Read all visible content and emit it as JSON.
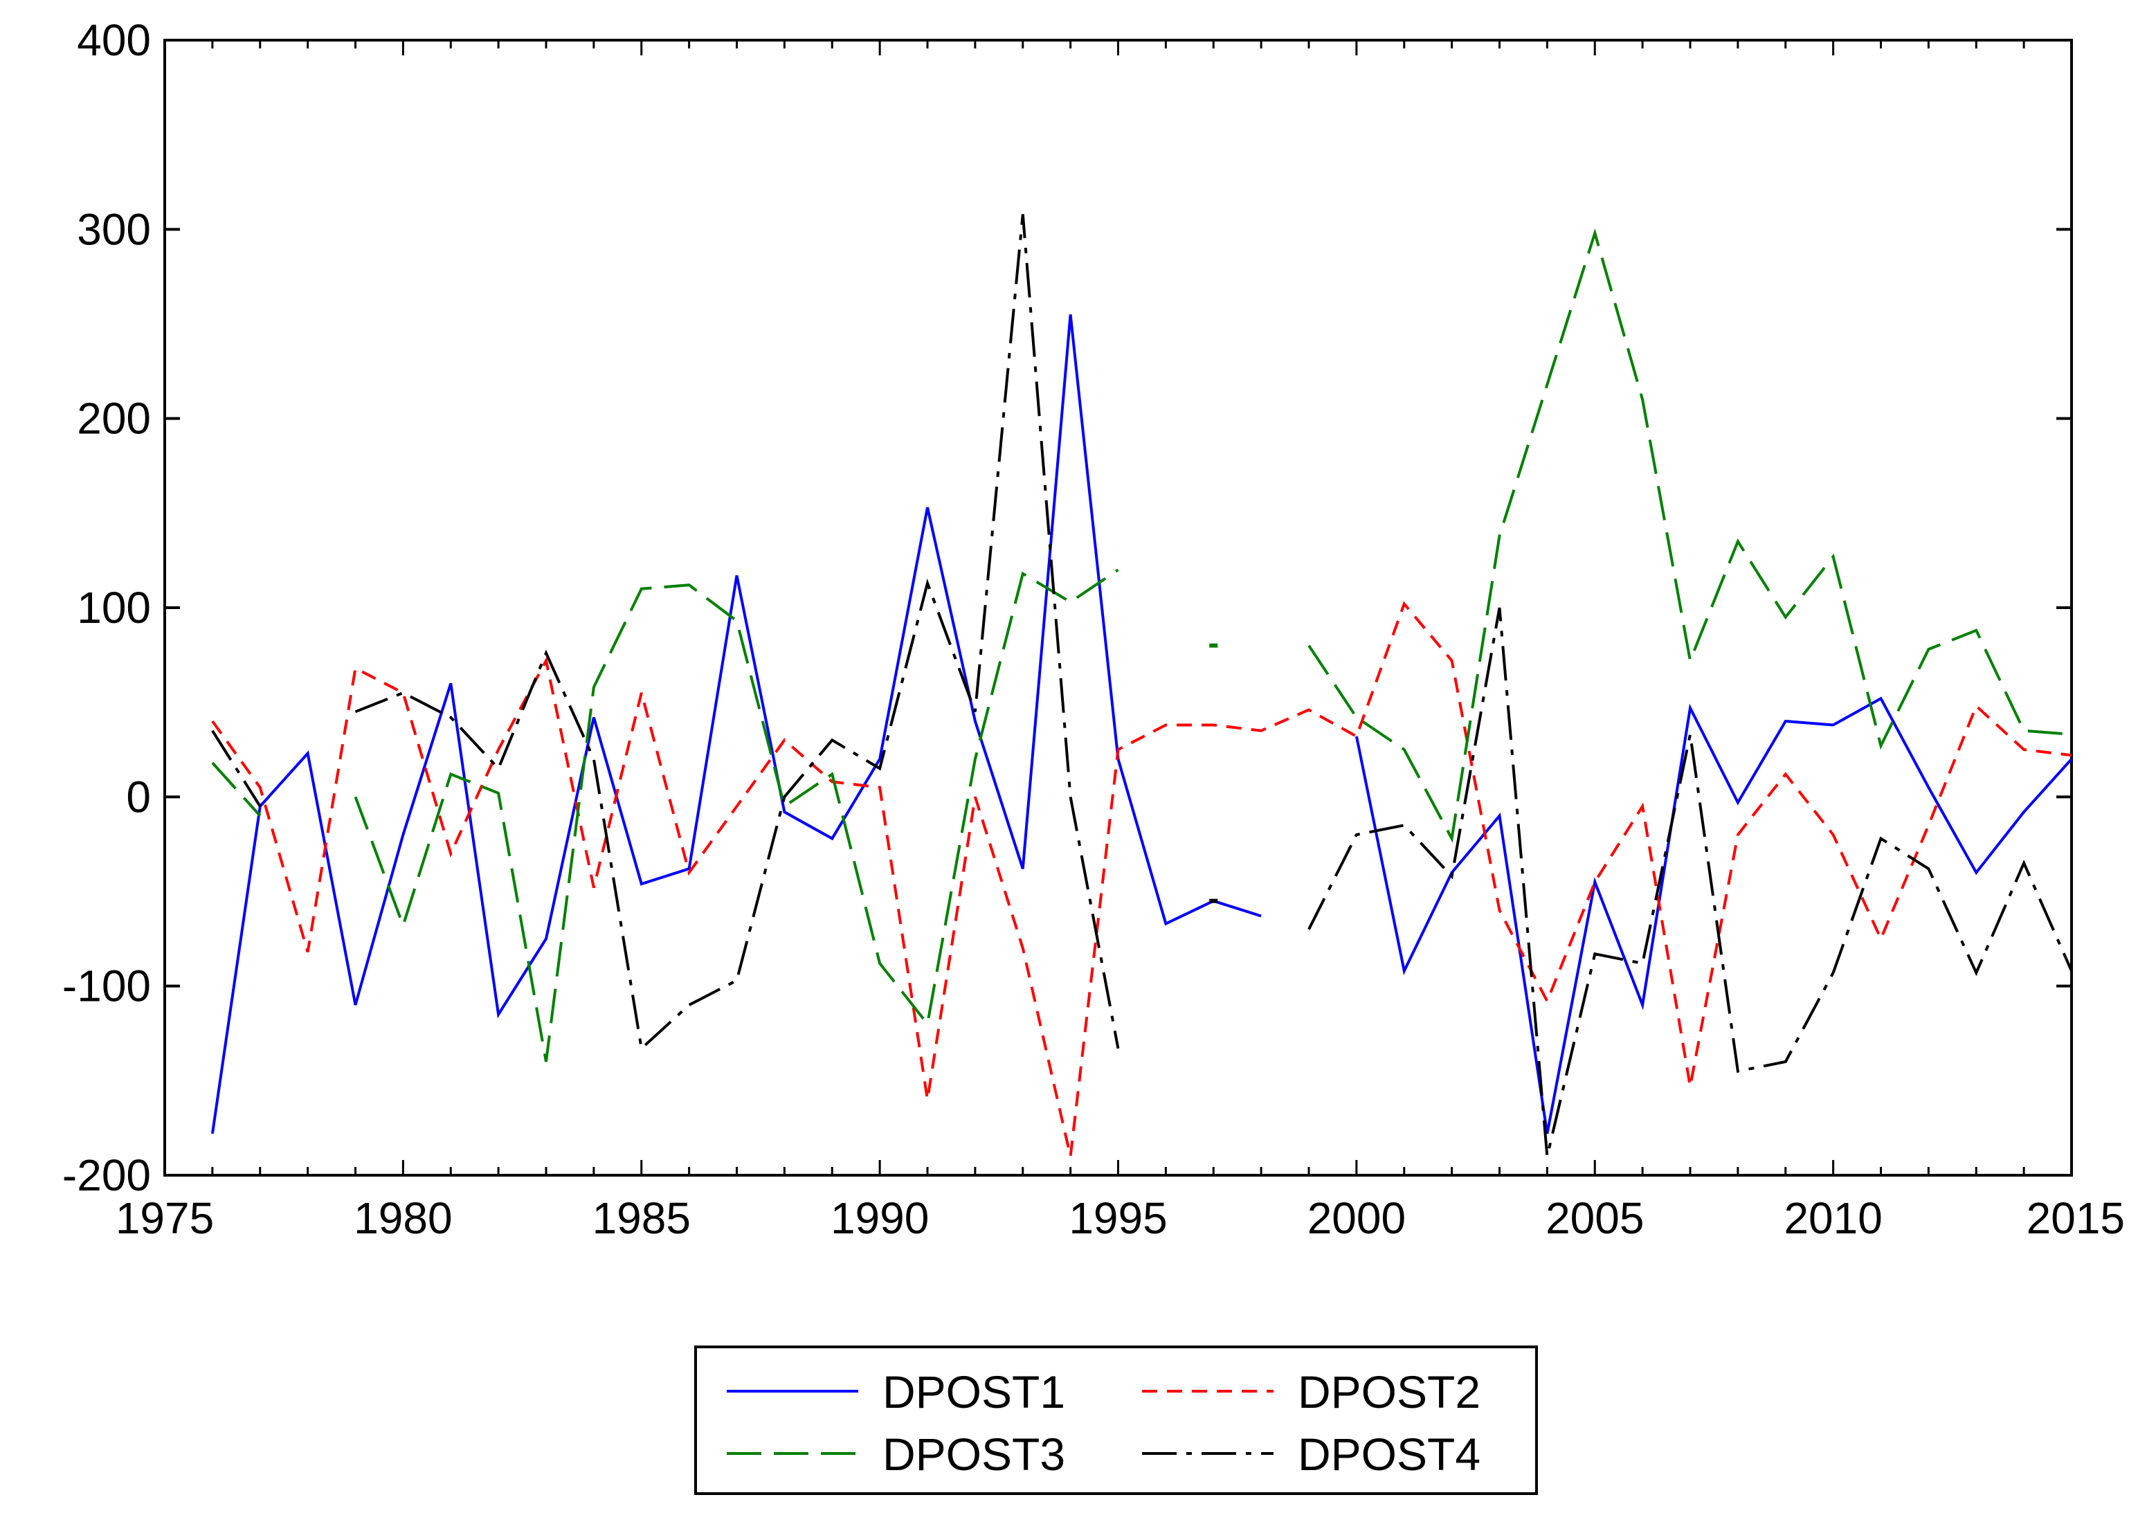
{
  "chart_data": {
    "type": "line",
    "title": "",
    "xlabel": "",
    "ylabel": "",
    "xlim": [
      1975,
      2015
    ],
    "ylim": [
      -200,
      400
    ],
    "x_ticks": [
      1975,
      1980,
      1985,
      1990,
      1995,
      2000,
      2005,
      2010,
      2015
    ],
    "x_tick_labels": [
      "1975",
      "1980",
      "1985",
      "1990",
      "1995",
      "2000",
      "2005",
      "2010",
      "2015"
    ],
    "y_ticks": [
      -200,
      -100,
      0,
      100,
      200,
      300,
      400
    ],
    "y_tick_labels": [
      "-200",
      "-100",
      "0",
      "100",
      "200",
      "300",
      "400"
    ],
    "grid": false,
    "legend_position": "bottom",
    "x": [
      1976,
      1977,
      1978,
      1979,
      1980,
      1981,
      1982,
      1983,
      1984,
      1985,
      1986,
      1987,
      1988,
      1989,
      1990,
      1991,
      1992,
      1993,
      1994,
      1995,
      1996,
      1997,
      1998,
      1999,
      2000,
      2001,
      2002,
      2003,
      2004,
      2005,
      2006,
      2007,
      2008,
      2009,
      2010,
      2011,
      2012,
      2013,
      2014,
      2015
    ],
    "series": [
      {
        "name": "DPOST1",
        "color": "#0000ff",
        "dash": "solid",
        "values": [
          -178,
          -5,
          23,
          -110,
          -20,
          60,
          -115,
          -75,
          42,
          -46,
          -38,
          117,
          -8,
          -22,
          20,
          153,
          40,
          -38,
          255,
          20,
          -67,
          -55,
          -63,
          null,
          32,
          -92,
          -40,
          -10,
          -178,
          -45,
          -110,
          47,
          -3,
          40,
          38,
          52,
          5,
          -40,
          -8,
          20
        ]
      },
      {
        "name": "DPOST2",
        "color": "#ff0000",
        "dash": "dashed",
        "values": [
          40,
          5,
          -82,
          68,
          55,
          -30,
          25,
          72,
          -48,
          55,
          -40,
          -5,
          30,
          8,
          5,
          -160,
          0,
          -80,
          -190,
          25,
          38,
          38,
          35,
          46,
          32,
          102,
          72,
          -60,
          -108,
          -45,
          -5,
          -153,
          -20,
          12,
          -20,
          -75,
          -15,
          48,
          25,
          22
        ]
      },
      {
        "name": "DPOST3",
        "color": "#008000",
        "dash": "longdash",
        "values": [
          18,
          -10,
          null,
          0,
          -68,
          12,
          2,
          -140,
          58,
          110,
          112,
          93,
          -5,
          12,
          -88,
          -120,
          20,
          118,
          103,
          120,
          null,
          80,
          null,
          80,
          42,
          25,
          -22,
          138,
          218,
          298,
          210,
          72,
          135,
          95,
          127,
          27,
          78,
          88,
          35,
          33
        ]
      },
      {
        "name": "DPOST4",
        "color": "#000000",
        "dash": "dashdot",
        "values": [
          35,
          -5,
          null,
          45,
          55,
          42,
          15,
          76,
          20,
          -133,
          -110,
          -97,
          0,
          30,
          15,
          113,
          45,
          308,
          0,
          -133,
          null,
          -55,
          null,
          -70,
          -20,
          -15,
          -42,
          100,
          -190,
          -83,
          -88,
          33,
          -145,
          -140,
          -93,
          -22,
          -38,
          -93,
          -35,
          -92
        ]
      }
    ]
  }
}
